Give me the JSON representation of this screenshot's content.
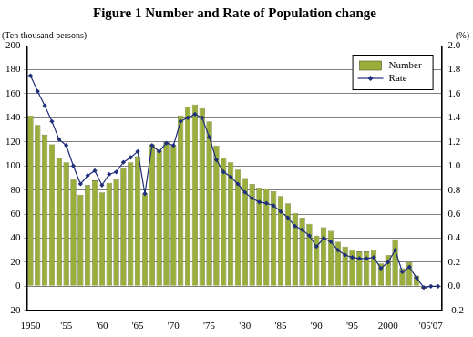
{
  "chart_data": {
    "type": "bar",
    "title": "Figure 1 Number and Rate of Population change",
    "y_label": "(Ten thousand persons)",
    "y2_label": "(%)",
    "categories": [
      "1950",
      null,
      null,
      null,
      null,
      "'55",
      null,
      null,
      null,
      null,
      "'60",
      null,
      null,
      null,
      null,
      "'65",
      null,
      null,
      null,
      null,
      "'70",
      null,
      null,
      null,
      null,
      "'75",
      null,
      null,
      null,
      null,
      "'80",
      null,
      null,
      null,
      null,
      "'85",
      null,
      null,
      null,
      null,
      "'90",
      null,
      null,
      null,
      null,
      "'95",
      null,
      null,
      null,
      null,
      "2000",
      null,
      null,
      null,
      null,
      null,
      "'05'07",
      null
    ],
    "series": [
      {
        "name": "Number",
        "type": "bar",
        "color": "#9aae3c",
        "values": [
          142,
          134,
          126,
          118,
          107,
          103,
          89,
          76,
          84,
          88,
          78,
          86,
          89,
          98,
          103,
          108,
          77,
          118,
          113,
          120,
          117,
          142,
          149,
          151,
          148,
          137,
          117,
          107,
          103,
          97,
          90,
          85,
          82,
          81,
          79,
          75,
          69,
          61,
          57,
          52,
          42,
          49,
          46,
          37,
          33,
          30,
          29,
          29,
          30,
          19,
          26,
          39,
          15,
          20,
          9,
          -2,
          0.5,
          0.3
        ]
      },
      {
        "name": "Rate",
        "type": "line",
        "axis": "y2",
        "color": "#1f2f7a",
        "marker": "diamond",
        "values": [
          1.75,
          1.62,
          1.5,
          1.37,
          1.22,
          1.17,
          1.0,
          0.85,
          0.92,
          0.96,
          0.84,
          0.93,
          0.95,
          1.03,
          1.07,
          1.12,
          0.77,
          1.17,
          1.12,
          1.19,
          1.17,
          1.37,
          1.4,
          1.43,
          1.4,
          1.24,
          1.05,
          0.95,
          0.91,
          0.85,
          0.78,
          0.73,
          0.7,
          0.69,
          0.67,
          0.62,
          0.57,
          0.5,
          0.47,
          0.42,
          0.33,
          0.4,
          0.37,
          0.3,
          0.26,
          0.24,
          0.23,
          0.23,
          0.24,
          0.15,
          0.2,
          0.3,
          0.12,
          0.16,
          0.07,
          -0.01,
          0.0,
          0.0
        ]
      }
    ],
    "ylim": [
      -20,
      200
    ],
    "yticks": [
      -20,
      0,
      20,
      40,
      60,
      80,
      100,
      120,
      140,
      160,
      180,
      200
    ],
    "y2lim": [
      -0.2,
      2.0
    ],
    "y2ticks": [
      {
        "value": -0.2,
        "label": "-0.2"
      },
      {
        "value": 0,
        "label": "0.0"
      },
      {
        "value": 0.2,
        "label": "0.2"
      },
      {
        "value": 0.4,
        "label": "0.4"
      },
      {
        "value": 0.6,
        "label": "0.6"
      },
      {
        "value": 0.8,
        "label": "0.8"
      },
      {
        "value": 1.0,
        "label": "1.0"
      },
      {
        "value": 1.2,
        "label": "1.2"
      },
      {
        "value": 1.4,
        "label": "1.4"
      },
      {
        "value": 1.6,
        "label": "1.6"
      },
      {
        "value": 1.8,
        "label": "1.8"
      },
      {
        "value": 2.0,
        "label": "2.0"
      }
    ],
    "grid": true,
    "legend": "upper right"
  }
}
